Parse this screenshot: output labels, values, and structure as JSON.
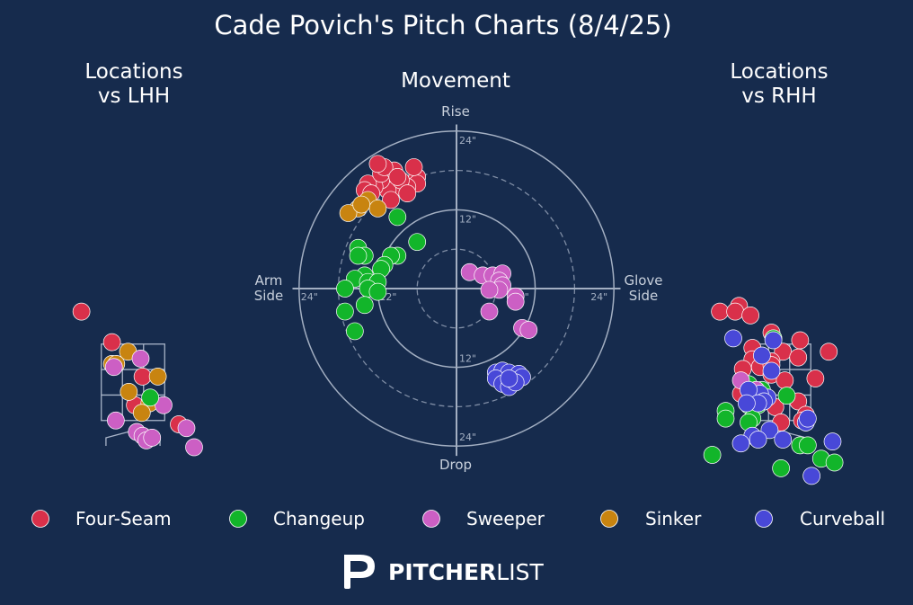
{
  "title": "Cade Povich's Pitch Charts (8/4/25)",
  "colors": {
    "background": "#162b4d",
    "foreground": "#ffffff",
    "zone_lines": "#a8b4c8",
    "four_seam": "#d9304a",
    "changeup": "#12b52a",
    "sweeper": "#cc5fc4",
    "sinker": "#c88410",
    "curveball": "#4848d8"
  },
  "brand": {
    "logo_icon": "pitcherlist-p-logo-icon",
    "bold": "PITCHER",
    "light": "LIST"
  },
  "legend": [
    {
      "key": "four_seam",
      "label": "Four-Seam"
    },
    {
      "key": "changeup",
      "label": "Changeup"
    },
    {
      "key": "sweeper",
      "label": "Sweeper"
    },
    {
      "key": "sinker",
      "label": "Sinker"
    },
    {
      "key": "curveball",
      "label": "Curveball"
    }
  ],
  "chart_data": [
    {
      "type": "scatter",
      "title_lines": [
        "Locations",
        "vs LHH"
      ],
      "x_range_ft": [
        -1.55,
        1.7
      ],
      "y_range_ft": [
        0.0,
        4.8
      ],
      "strike_zone": {
        "x": [
          -0.83,
          0.83
        ],
        "y": [
          1.5,
          3.5
        ]
      },
      "points": [
        {
          "type": "four_seam",
          "x": -1.35,
          "y": 4.35
        },
        {
          "type": "four_seam",
          "x": -0.55,
          "y": 3.55
        },
        {
          "type": "four_seam",
          "x": 0.25,
          "y": 2.65
        },
        {
          "type": "four_seam",
          "x": 0.05,
          "y": 1.9
        },
        {
          "type": "four_seam",
          "x": 1.2,
          "y": 1.4
        },
        {
          "type": "sinker",
          "x": -0.13,
          "y": 3.3
        },
        {
          "type": "sinker",
          "x": -0.55,
          "y": 2.98
        },
        {
          "type": "sinker",
          "x": -0.44,
          "y": 2.98
        },
        {
          "type": "sinker",
          "x": 0.65,
          "y": 2.65
        },
        {
          "type": "sinker",
          "x": -0.11,
          "y": 2.25
        },
        {
          "type": "sinker",
          "x": 0.43,
          "y": 1.95
        },
        {
          "type": "sinker",
          "x": 0.23,
          "y": 1.7
        },
        {
          "type": "sweeper",
          "x": 0.2,
          "y": 3.12
        },
        {
          "type": "sweeper",
          "x": -0.5,
          "y": 2.9
        },
        {
          "type": "sweeper",
          "x": 0.8,
          "y": 1.9
        },
        {
          "type": "sweeper",
          "x": -0.45,
          "y": 1.5
        },
        {
          "type": "sweeper",
          "x": 0.1,
          "y": 1.2
        },
        {
          "type": "sweeper",
          "x": 0.25,
          "y": 1.1
        },
        {
          "type": "sweeper",
          "x": 0.35,
          "y": 0.98
        },
        {
          "type": "sweeper",
          "x": 0.5,
          "y": 1.05
        },
        {
          "type": "sweeper",
          "x": 1.4,
          "y": 1.3
        },
        {
          "type": "sweeper",
          "x": 1.6,
          "y": 0.8
        },
        {
          "type": "changeup",
          "x": 0.45,
          "y": 2.1
        }
      ]
    },
    {
      "type": "scatter",
      "title": "Movement",
      "axis_labels": {
        "top": "Rise",
        "bottom": "Drop",
        "left": [
          "Arm",
          "Side"
        ],
        "right": [
          "Glove",
          "Side"
        ]
      },
      "units": "inches",
      "radius_max_in": 24,
      "ring_labels": [
        "12\"",
        "24\""
      ],
      "points": [
        {
          "type": "four_seam",
          "x": -6,
          "y": 17
        },
        {
          "type": "four_seam",
          "x": -6,
          "y": 16
        },
        {
          "type": "four_seam",
          "x": -7.5,
          "y": 15.5
        },
        {
          "type": "four_seam",
          "x": -9,
          "y": 15.5
        },
        {
          "type": "four_seam",
          "x": -10.5,
          "y": 15
        },
        {
          "type": "four_seam",
          "x": -11.5,
          "y": 16.5
        },
        {
          "type": "four_seam",
          "x": -12.5,
          "y": 15.5
        },
        {
          "type": "four_seam",
          "x": -13.5,
          "y": 16
        },
        {
          "type": "four_seam",
          "x": -14,
          "y": 15
        },
        {
          "type": "four_seam",
          "x": -11.5,
          "y": 17.5
        },
        {
          "type": "four_seam",
          "x": -9.5,
          "y": 18
        },
        {
          "type": "four_seam",
          "x": -11,
          "y": 18.5
        },
        {
          "type": "four_seam",
          "x": -8.5,
          "y": 16.5
        },
        {
          "type": "four_seam",
          "x": -13,
          "y": 14.5
        },
        {
          "type": "four_seam",
          "x": -10,
          "y": 13.5
        },
        {
          "type": "four_seam",
          "x": -7.5,
          "y": 14.5
        },
        {
          "type": "four_seam",
          "x": -6.5,
          "y": 18.5
        },
        {
          "type": "four_seam",
          "x": -12,
          "y": 19
        },
        {
          "type": "four_seam",
          "x": -9,
          "y": 17
        },
        {
          "type": "sinker",
          "x": -13.5,
          "y": 13.5
        },
        {
          "type": "sinker",
          "x": -15,
          "y": 12.2
        },
        {
          "type": "sinker",
          "x": -12,
          "y": 12.2
        },
        {
          "type": "sinker",
          "x": -16.5,
          "y": 11.5
        },
        {
          "type": "sinker",
          "x": -14.5,
          "y": 12.8
        },
        {
          "type": "changeup",
          "x": -9,
          "y": 10.9
        },
        {
          "type": "changeup",
          "x": -6,
          "y": 7.1
        },
        {
          "type": "changeup",
          "x": -15,
          "y": 6.2
        },
        {
          "type": "changeup",
          "x": -14,
          "y": 5
        },
        {
          "type": "changeup",
          "x": -15,
          "y": 5
        },
        {
          "type": "changeup",
          "x": -9,
          "y": 5
        },
        {
          "type": "changeup",
          "x": -10,
          "y": 5
        },
        {
          "type": "changeup",
          "x": -11,
          "y": 3.6
        },
        {
          "type": "changeup",
          "x": -11.5,
          "y": 3
        },
        {
          "type": "changeup",
          "x": -14,
          "y": 2
        },
        {
          "type": "changeup",
          "x": -15.5,
          "y": 1.5
        },
        {
          "type": "changeup",
          "x": -13.5,
          "y": 1
        },
        {
          "type": "changeup",
          "x": -12,
          "y": 1
        },
        {
          "type": "changeup",
          "x": -17,
          "y": 0
        },
        {
          "type": "changeup",
          "x": -13.5,
          "y": 0
        },
        {
          "type": "changeup",
          "x": -12,
          "y": -0.5
        },
        {
          "type": "changeup",
          "x": -14,
          "y": -2.5
        },
        {
          "type": "changeup",
          "x": -17,
          "y": -3.5
        },
        {
          "type": "changeup",
          "x": -15.5,
          "y": -6.5
        },
        {
          "type": "sweeper",
          "x": 2,
          "y": 2.5
        },
        {
          "type": "sweeper",
          "x": 4,
          "y": 2
        },
        {
          "type": "sweeper",
          "x": 5.5,
          "y": 2
        },
        {
          "type": "sweeper",
          "x": 7,
          "y": 2.3
        },
        {
          "type": "sweeper",
          "x": 6.5,
          "y": 1.2
        },
        {
          "type": "sweeper",
          "x": 7,
          "y": 0.5
        },
        {
          "type": "sweeper",
          "x": 6.5,
          "y": -0.2
        },
        {
          "type": "sweeper",
          "x": 5,
          "y": -0.2
        },
        {
          "type": "sweeper",
          "x": 9,
          "y": -1.2
        },
        {
          "type": "sweeper",
          "x": 9,
          "y": -2
        },
        {
          "type": "sweeper",
          "x": 5,
          "y": -3.5
        },
        {
          "type": "sweeper",
          "x": 10,
          "y": -6
        },
        {
          "type": "sweeper",
          "x": 11,
          "y": -6.3
        },
        {
          "type": "curveball",
          "x": 6,
          "y": -12.8
        },
        {
          "type": "curveball",
          "x": 7,
          "y": -12.5
        },
        {
          "type": "curveball",
          "x": 8,
          "y": -12.8
        },
        {
          "type": "curveball",
          "x": 9.5,
          "y": -13
        },
        {
          "type": "curveball",
          "x": 10,
          "y": -13.5
        },
        {
          "type": "curveball",
          "x": 6,
          "y": -13.7
        },
        {
          "type": "curveball",
          "x": 7,
          "y": -14.5
        },
        {
          "type": "curveball",
          "x": 8,
          "y": -15
        },
        {
          "type": "curveball",
          "x": 9,
          "y": -14.3
        },
        {
          "type": "curveball",
          "x": 8,
          "y": -13.7
        }
      ]
    },
    {
      "type": "scatter",
      "title_lines": [
        "Locations",
        "vs RHH"
      ],
      "x_range_ft": [
        -1.55,
        1.7
      ],
      "y_range_ft": [
        0.0,
        4.8
      ],
      "strike_zone": {
        "x": [
          -0.83,
          0.83
        ],
        "y": [
          1.5,
          3.5
        ]
      },
      "points": [
        {
          "type": "four_seam",
          "x": -1.55,
          "y": 4.35
        },
        {
          "type": "four_seam",
          "x": -1.05,
          "y": 4.5
        },
        {
          "type": "four_seam",
          "x": -1.15,
          "y": 4.35
        },
        {
          "type": "four_seam",
          "x": -0.75,
          "y": 4.25
        },
        {
          "type": "four_seam",
          "x": -0.2,
          "y": 3.8
        },
        {
          "type": "four_seam",
          "x": 0.55,
          "y": 3.6
        },
        {
          "type": "four_seam",
          "x": -0.7,
          "y": 3.4
        },
        {
          "type": "four_seam",
          "x": 0.1,
          "y": 3.3
        },
        {
          "type": "four_seam",
          "x": 0.5,
          "y": 3.15
        },
        {
          "type": "four_seam",
          "x": 1.3,
          "y": 3.3
        },
        {
          "type": "four_seam",
          "x": -0.7,
          "y": 3.1
        },
        {
          "type": "four_seam",
          "x": -0.2,
          "y": 3.05
        },
        {
          "type": "four_seam",
          "x": -0.5,
          "y": 2.9
        },
        {
          "type": "four_seam",
          "x": -0.2,
          "y": 2.7
        },
        {
          "type": "four_seam",
          "x": -0.2,
          "y": 2.95
        },
        {
          "type": "four_seam",
          "x": -0.95,
          "y": 2.85
        },
        {
          "type": "four_seam",
          "x": 0.15,
          "y": 2.55
        },
        {
          "type": "four_seam",
          "x": 0.95,
          "y": 2.6
        },
        {
          "type": "four_seam",
          "x": -0.9,
          "y": 2.4
        },
        {
          "type": "four_seam",
          "x": -1.0,
          "y": 2.2
        },
        {
          "type": "four_seam",
          "x": 0.5,
          "y": 2.0
        },
        {
          "type": "four_seam",
          "x": -0.1,
          "y": 1.85
        },
        {
          "type": "four_seam",
          "x": 0.7,
          "y": 1.65
        },
        {
          "type": "four_seam",
          "x": 0.05,
          "y": 1.45
        },
        {
          "type": "four_seam",
          "x": 0.7,
          "y": 1.45
        },
        {
          "type": "four_seam",
          "x": 0.6,
          "y": 1.5
        },
        {
          "type": "changeup",
          "x": -0.15,
          "y": 3.65
        },
        {
          "type": "changeup",
          "x": -0.8,
          "y": 2.45
        },
        {
          "type": "changeup",
          "x": -0.45,
          "y": 2.3
        },
        {
          "type": "changeup",
          "x": 0.2,
          "y": 2.15
        },
        {
          "type": "changeup",
          "x": -0.8,
          "y": 1.9
        },
        {
          "type": "changeup",
          "x": -0.55,
          "y": 1.9
        },
        {
          "type": "changeup",
          "x": -1.4,
          "y": 1.75
        },
        {
          "type": "changeup",
          "x": -0.7,
          "y": 1.55
        },
        {
          "type": "changeup",
          "x": -0.8,
          "y": 1.45
        },
        {
          "type": "changeup",
          "x": -1.4,
          "y": 1.55
        },
        {
          "type": "changeup",
          "x": 0.55,
          "y": 0.85
        },
        {
          "type": "changeup",
          "x": 0.75,
          "y": 0.85
        },
        {
          "type": "changeup",
          "x": -1.75,
          "y": 0.6
        },
        {
          "type": "changeup",
          "x": 1.1,
          "y": 0.5
        },
        {
          "type": "changeup",
          "x": 0.05,
          "y": 0.25
        },
        {
          "type": "changeup",
          "x": 1.45,
          "y": 0.4
        },
        {
          "type": "sweeper",
          "x": -1.0,
          "y": 2.55
        },
        {
          "type": "sweeper",
          "x": -0.6,
          "y": 2.3
        },
        {
          "type": "curveball",
          "x": -1.2,
          "y": 3.65
        },
        {
          "type": "curveball",
          "x": -0.15,
          "y": 3.6
        },
        {
          "type": "curveball",
          "x": -0.45,
          "y": 3.2
        },
        {
          "type": "curveball",
          "x": -0.2,
          "y": 2.8
        },
        {
          "type": "curveball",
          "x": -0.3,
          "y": 2.1
        },
        {
          "type": "curveball",
          "x": -0.5,
          "y": 2.2
        },
        {
          "type": "curveball",
          "x": -0.8,
          "y": 2.3
        },
        {
          "type": "curveball",
          "x": -0.4,
          "y": 2.0
        },
        {
          "type": "curveball",
          "x": -0.55,
          "y": 1.95
        },
        {
          "type": "curveball",
          "x": -0.85,
          "y": 1.95
        },
        {
          "type": "curveball",
          "x": -0.25,
          "y": 1.25
        },
        {
          "type": "curveball",
          "x": -0.7,
          "y": 1.1
        },
        {
          "type": "curveball",
          "x": -0.55,
          "y": 1.0
        },
        {
          "type": "curveball",
          "x": 0.7,
          "y": 1.45
        },
        {
          "type": "curveball",
          "x": 0.75,
          "y": 1.55
        },
        {
          "type": "curveball",
          "x": -1.0,
          "y": 0.9
        },
        {
          "type": "curveball",
          "x": 0.1,
          "y": 1.0
        },
        {
          "type": "curveball",
          "x": 1.4,
          "y": 0.95
        },
        {
          "type": "curveball",
          "x": 0.85,
          "y": 0.05
        }
      ]
    }
  ]
}
